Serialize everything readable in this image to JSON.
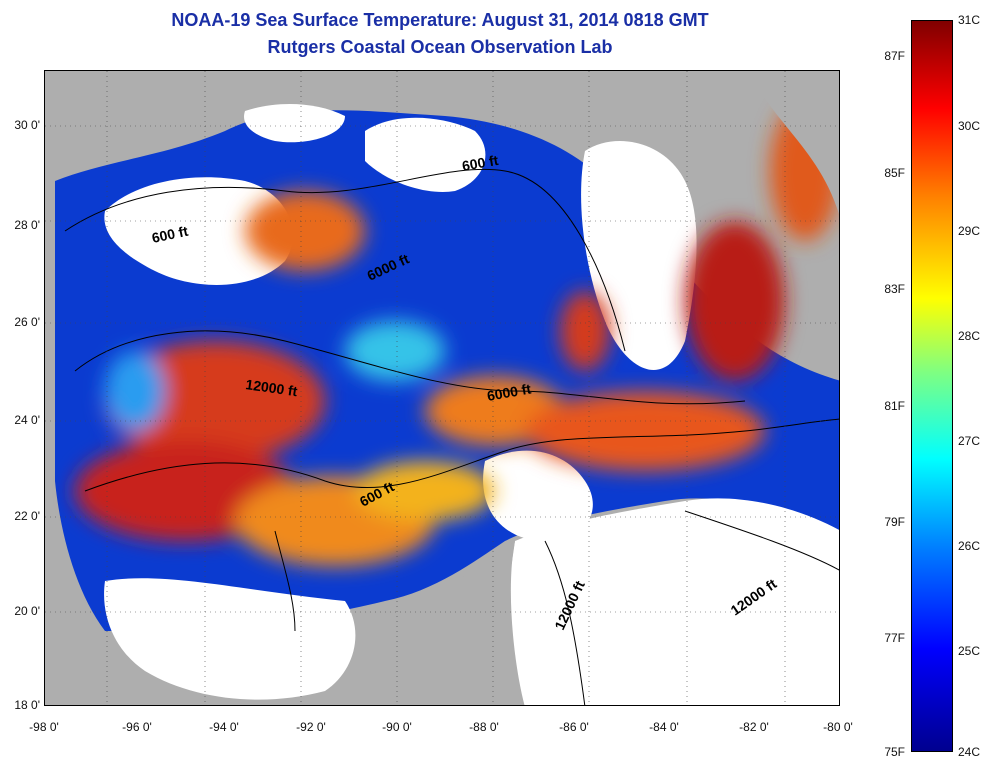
{
  "header": {
    "title": "NOAA-19 Sea Surface Temperature:  August 31, 2014 0818 GMT",
    "subtitle": "Rutgers Coastal Ocean Observation Lab"
  },
  "map": {
    "lat_labels": [
      "30 0'",
      "28 0'",
      "26 0'",
      "24 0'",
      "22 0'",
      "20 0'",
      "18 0'"
    ],
    "lon_labels": [
      "-98 0'",
      "-96 0'",
      "-94 0'",
      "-92 0'",
      "-90 0'",
      "-88 0'",
      "-86 0'",
      "-84 0'",
      "-82 0'",
      "-80 0'"
    ],
    "contour_labels": [
      "600 ft",
      "6000 ft",
      "12000 ft",
      "6000 ft",
      "600 ft",
      "600 ft",
      "12000 ft",
      "12000 ft"
    ],
    "colors": {
      "land": "#aeaeae",
      "cloud": "#ffffff",
      "contour": "#000000"
    }
  },
  "colorbar": {
    "fahrenheit_labels": [
      "87F",
      "85F",
      "83F",
      "81F",
      "79F",
      "77F",
      "75F"
    ],
    "celsius_labels": [
      "31C",
      "30C",
      "29C",
      "28C",
      "27C",
      "26C",
      "25C",
      "24C"
    ]
  }
}
